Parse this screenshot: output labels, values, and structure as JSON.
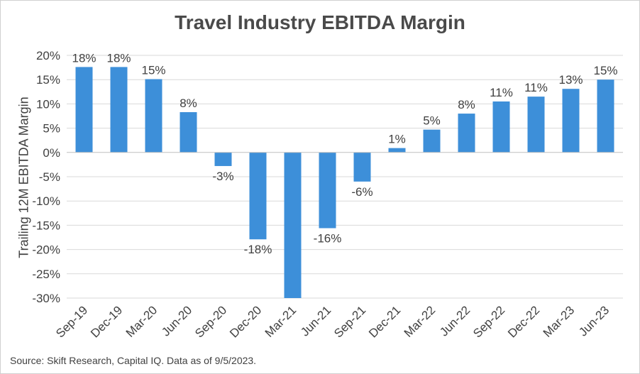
{
  "chart_data": {
    "type": "bar",
    "title": "Travel Industry EBITDA Margin",
    "ylabel": "Trailing 12M EBITDA Margin",
    "xlabel": "",
    "categories": [
      "Sep-19",
      "Dec-19",
      "Mar-20",
      "Jun-20",
      "Sep-20",
      "Dec-20",
      "Mar-21",
      "Jun-21",
      "Sep-21",
      "Dec-21",
      "Mar-22",
      "Jun-22",
      "Sep-22",
      "Dec-22",
      "Mar-23",
      "Jun-23"
    ],
    "values": [
      17.6,
      17.6,
      15.1,
      8.3,
      -2.8,
      -17.9,
      -30.0,
      -15.6,
      -6.0,
      0.9,
      4.7,
      8.0,
      10.5,
      11.5,
      13.1,
      15.0
    ],
    "data_labels": [
      "18%",
      "18%",
      "15%",
      "8%",
      "-3%",
      "-18%",
      "",
      "-16%",
      "-6%",
      "1%",
      "5%",
      "8%",
      "11%",
      "11%",
      "13%",
      "15%"
    ],
    "yticks": [
      "20%",
      "15%",
      "10%",
      "5%",
      "0%",
      "-5%",
      "-10%",
      "-15%",
      "-20%",
      "-25%",
      "-30%"
    ],
    "ylim": [
      -30,
      20
    ],
    "grid": true,
    "bar_color": "#3d8fd9",
    "source": "Source: Skift Research, Capital IQ. Data as of 9/5/2023."
  }
}
